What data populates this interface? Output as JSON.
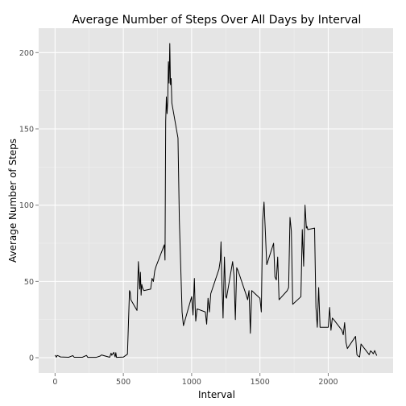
{
  "chart_data": {
    "type": "line",
    "title": "Average Number of Steps Over All Days by Interval",
    "xlabel": "Interval",
    "ylabel": "Average Number of Steps",
    "xlim": [
      -120,
      2475
    ],
    "ylim": [
      -10,
      216
    ],
    "xticks": [
      0,
      500,
      1000,
      1500,
      2000
    ],
    "yticks": [
      0,
      50,
      100,
      150,
      200
    ],
    "xtick_labels": [
      "0",
      "500",
      "1000",
      "1500",
      "2000"
    ],
    "ytick_labels": [
      "0",
      "50",
      "100",
      "150",
      "200"
    ],
    "grid": true,
    "panel_background": "#E5E5E5",
    "grid_major_color": "#FFFFFF",
    "grid_minor_color": "#F2F2F2",
    "line_color": "#000000",
    "series": [
      {
        "x": [
          0,
          10,
          15,
          25,
          40,
          100,
          130,
          140,
          200,
          230,
          240,
          300,
          330,
          340,
          400,
          410,
          415,
          430,
          440,
          445,
          450,
          500,
          530,
          535,
          545,
          550,
          555,
          600,
          610,
          620,
          625,
          630,
          635,
          640,
          650,
          700,
          710,
          720,
          730,
          740,
          800,
          805,
          810,
          815,
          820,
          825,
          830,
          835,
          840,
          845,
          850,
          855,
          900,
          910,
          920,
          930,
          940,
          1000,
          1010,
          1020,
          1025,
          1030,
          1040,
          1100,
          1110,
          1120,
          1130,
          1140,
          1200,
          1205,
          1210,
          1215,
          1220,
          1230,
          1240,
          1245,
          1250,
          1255,
          1300,
          1310,
          1320,
          1330,
          1340,
          1400,
          1410,
          1420,
          1430,
          1440,
          1500,
          1510,
          1520,
          1530,
          1540,
          1545,
          1550,
          1600,
          1610,
          1620,
          1630,
          1640,
          1700,
          1710,
          1720,
          1730,
          1740,
          1800,
          1810,
          1820,
          1830,
          1840,
          1845,
          1850,
          1900,
          1910,
          1920,
          1930,
          1940,
          2000,
          2010,
          2020,
          2030,
          2040,
          2100,
          2110,
          2120,
          2130,
          2140,
          2200,
          2210,
          2220,
          2230,
          2240,
          2300,
          2310,
          2320,
          2330,
          2340,
          2355
        ],
        "y": [
          1.7,
          0.3,
          1.5,
          1.2,
          0.5,
          0.3,
          1.4,
          0.3,
          0.3,
          1.5,
          0.2,
          0.2,
          1.1,
          1.8,
          0.3,
          3.0,
          1.6,
          3.5,
          0.5,
          3.3,
          0.2,
          0.4,
          2.3,
          16.0,
          44.0,
          43.0,
          38.0,
          31.0,
          63.0,
          45.0,
          56.0,
          41.0,
          48.0,
          46.0,
          44.0,
          45.0,
          52.0,
          50.0,
          57.0,
          60.0,
          74.0,
          64.0,
          155.0,
          171.0,
          160.0,
          168.0,
          194.0,
          180.0,
          206.0,
          179.0,
          183.0,
          167.0,
          144.0,
          90.0,
          60.0,
          30.0,
          21.0,
          40.0,
          28.0,
          52.0,
          35.0,
          24.0,
          32.0,
          30.0,
          22.0,
          39.0,
          30.0,
          42.0,
          58.0,
          61.0,
          64.0,
          76.0,
          54.0,
          26.0,
          66.0,
          52.0,
          40.0,
          39.0,
          63.0,
          54.0,
          25.0,
          59.0,
          57.0,
          41.0,
          38.0,
          44.0,
          16.0,
          44.0,
          39.0,
          30.0,
          90.0,
          102.0,
          82.0,
          71.0,
          61.0,
          75.0,
          53.0,
          51.0,
          66.0,
          38.0,
          44.0,
          46.0,
          92.0,
          83.0,
          35.0,
          40.0,
          84.0,
          60.0,
          100.0,
          85.0,
          86.0,
          84.0,
          85.0,
          33.0,
          20.0,
          46.0,
          20.0,
          20.0,
          33.0,
          18.0,
          26.0,
          25.0,
          18.0,
          15.0,
          23.0,
          10.0,
          6.0,
          14.0,
          2.0,
          1.0,
          0.5,
          9.0,
          2.0,
          4.5,
          3.7,
          2.6,
          4.7,
          1.4
        ]
      }
    ]
  }
}
